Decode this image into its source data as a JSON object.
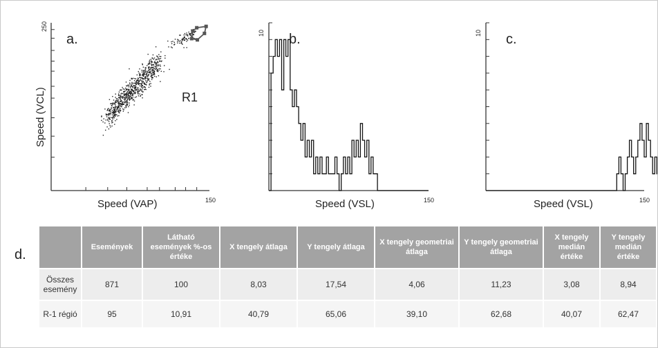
{
  "chart_data": [
    {
      "panel": "a.",
      "type": "scatter",
      "xlabel": "Speed (VAP)",
      "ylabel": "Speed (VCL)",
      "xlim": [
        0,
        150
      ],
      "ylim": [
        0,
        250
      ],
      "x_tick_max_label": "150",
      "y_tick_max_label": "250",
      "region_label": "R1",
      "region_polygon": [
        [
          88,
          190
        ],
        [
          100,
          212
        ],
        [
          135,
          222
        ],
        [
          128,
          176
        ],
        [
          102,
          142
        ],
        [
          85,
          148
        ]
      ]
    },
    {
      "panel": "b.",
      "type": "line",
      "xlabel": "Speed (VSL)",
      "ylabel": "",
      "xlim": [
        0,
        150
      ],
      "ylim": [
        0,
        10
      ],
      "x_tick_max_label": "150",
      "y_tick_max_label": "10",
      "bin_width": 2,
      "counts": [
        0,
        7,
        8,
        9,
        8,
        9,
        6,
        9,
        8,
        9,
        6,
        5,
        6,
        5,
        4,
        3,
        4,
        2,
        3,
        2,
        3,
        1,
        2,
        1,
        2,
        1,
        1,
        2,
        1,
        1,
        1,
        2,
        1,
        0,
        1,
        2,
        1,
        2,
        1,
        3,
        2,
        3,
        2,
        4,
        3,
        2,
        3,
        1,
        2,
        1,
        1,
        0,
        0,
        0,
        0,
        0,
        0,
        0,
        0,
        0,
        0,
        0,
        0,
        0,
        0,
        0,
        0,
        0,
        0,
        0,
        0,
        0,
        0,
        0,
        0
      ]
    },
    {
      "panel": "c.",
      "type": "line",
      "xlabel": "Speed (VSL)",
      "ylabel": "",
      "xlim": [
        0,
        150
      ],
      "ylim": [
        0,
        10
      ],
      "x_tick_max_label": "150",
      "y_tick_max_label": "10",
      "bin_width": 2,
      "counts": [
        0,
        0,
        0,
        0,
        0,
        0,
        0,
        0,
        0,
        0,
        0,
        0,
        0,
        0,
        0,
        0,
        0,
        0,
        0,
        0,
        0,
        0,
        0,
        0,
        0,
        0,
        0,
        0,
        0,
        0,
        0,
        0,
        0,
        0,
        0,
        0,
        0,
        0,
        0,
        0,
        0,
        0,
        0,
        0,
        0,
        0,
        0,
        0,
        0,
        0,
        0,
        0,
        0,
        0,
        0,
        0,
        0,
        0,
        0,
        0,
        0,
        0,
        1,
        2,
        1,
        0,
        1,
        2,
        3,
        2,
        1,
        2,
        3,
        4,
        3,
        2,
        4,
        3,
        2,
        1,
        2,
        1,
        0,
        1,
        0,
        0
      ]
    },
    {
      "panel": "d.",
      "type": "table"
    }
  ],
  "table": {
    "label": "d.",
    "headers": [
      "",
      "Események",
      "Látható események %-os értéke",
      "X tengely átlaga",
      "Y tengely átlaga",
      "X tengely geometriai átlaga",
      "Y tengely geometriai átlaga",
      "X tengely medián értéke",
      "Y tengely medián értéke"
    ],
    "rows": [
      [
        "Összes esemény",
        "871",
        "100",
        "8,03",
        "17,54",
        "4,06",
        "11,23",
        "3,08",
        "8,94"
      ],
      [
        "R-1 régió",
        "95",
        "10,91",
        "40,79",
        "65,06",
        "39,10",
        "62,68",
        "40,07",
        "62,47"
      ]
    ]
  }
}
